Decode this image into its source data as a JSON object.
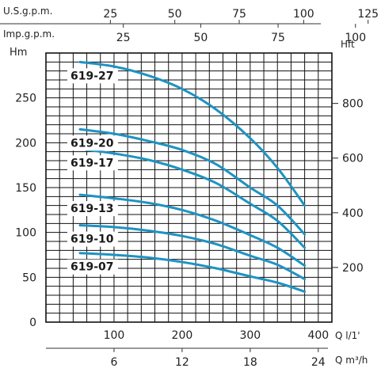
{
  "chart_data": {
    "type": "line",
    "x_axis": {
      "label": "Q l/1'",
      "range": [
        0,
        420
      ],
      "ticks": [
        0,
        20,
        40,
        60,
        80,
        100,
        120,
        140,
        160,
        180,
        200,
        220,
        240,
        260,
        280,
        300,
        320,
        340,
        360,
        380,
        400,
        420
      ],
      "tick_labels": [
        {
          "value": 100,
          "text": "100"
        },
        {
          "value": 200,
          "text": "200"
        },
        {
          "value": 300,
          "text": "300"
        },
        {
          "value": 400,
          "text": "400"
        }
      ]
    },
    "y_axis": {
      "label": "Hm",
      "range": [
        0,
        300
      ],
      "ticks": [
        0,
        10,
        20,
        30,
        40,
        50,
        60,
        70,
        80,
        90,
        100,
        110,
        120,
        130,
        140,
        150,
        160,
        170,
        180,
        190,
        200,
        210,
        220,
        230,
        240,
        250,
        260,
        270,
        280,
        290,
        300
      ],
      "tick_labels": [
        {
          "value": 0,
          "text": "0"
        },
        {
          "value": 50,
          "text": "50"
        },
        {
          "value": 100,
          "text": "100"
        },
        {
          "value": 150,
          "text": "150"
        },
        {
          "value": 200,
          "text": "200"
        },
        {
          "value": 250,
          "text": "250"
        }
      ]
    },
    "right_axis": {
      "label": "Hft",
      "tick_labels": [
        {
          "value": 200,
          "text": "200"
        },
        {
          "value": 400,
          "text": "400"
        },
        {
          "value": 600,
          "text": "600"
        },
        {
          "value": 800,
          "text": "800"
        }
      ]
    },
    "top_axes": [
      {
        "label": "U.S.g.p.m.",
        "tick_labels": [
          {
            "value": 25,
            "text": "25"
          },
          {
            "value": 50,
            "text": "50"
          },
          {
            "value": 75,
            "text": "75"
          },
          {
            "value": 100,
            "text": "100"
          },
          {
            "value": 125,
            "text": "125"
          }
        ]
      },
      {
        "label": "Imp.g.p.m.",
        "tick_labels": [
          {
            "value": 25,
            "text": "25"
          },
          {
            "value": 50,
            "text": "50"
          },
          {
            "value": 75,
            "text": "75"
          },
          {
            "value": 100,
            "text": "100"
          }
        ]
      }
    ],
    "bottom_axis": {
      "label": "Q m³/h",
      "tick_labels": [
        {
          "value": 6,
          "text": "6"
        },
        {
          "value": 12,
          "text": "12"
        },
        {
          "value": 18,
          "text": "18"
        },
        {
          "value": 24,
          "text": "24"
        }
      ]
    },
    "grid": true,
    "series": [
      {
        "name": "619-27",
        "points": [
          [
            50,
            290
          ],
          [
            100,
            285
          ],
          [
            150,
            275
          ],
          [
            200,
            260
          ],
          [
            250,
            237
          ],
          [
            300,
            205
          ],
          [
            340,
            172
          ],
          [
            380,
            130
          ]
        ]
      },
      {
        "name": "619-20",
        "points": [
          [
            50,
            215
          ],
          [
            100,
            210
          ],
          [
            150,
            202
          ],
          [
            200,
            192
          ],
          [
            250,
            176
          ],
          [
            300,
            150
          ],
          [
            340,
            130
          ],
          [
            380,
            98
          ]
        ]
      },
      {
        "name": "619-17",
        "points": [
          [
            50,
            193
          ],
          [
            100,
            188
          ],
          [
            150,
            181
          ],
          [
            200,
            170
          ],
          [
            250,
            155
          ],
          [
            300,
            132
          ],
          [
            340,
            113
          ],
          [
            380,
            83
          ]
        ]
      },
      {
        "name": "619-13",
        "points": [
          [
            50,
            142
          ],
          [
            100,
            138
          ],
          [
            150,
            133
          ],
          [
            200,
            125
          ],
          [
            250,
            113
          ],
          [
            300,
            97
          ],
          [
            340,
            83
          ],
          [
            380,
            63
          ]
        ]
      },
      {
        "name": "619-10",
        "points": [
          [
            50,
            108
          ],
          [
            100,
            106
          ],
          [
            150,
            102
          ],
          [
            200,
            96
          ],
          [
            250,
            87
          ],
          [
            300,
            74
          ],
          [
            340,
            64
          ],
          [
            380,
            48
          ]
        ]
      },
      {
        "name": "619-07",
        "points": [
          [
            50,
            77
          ],
          [
            100,
            75
          ],
          [
            150,
            72
          ],
          [
            200,
            67
          ],
          [
            250,
            60
          ],
          [
            300,
            51
          ],
          [
            340,
            44
          ],
          [
            380,
            34
          ]
        ]
      }
    ],
    "colors": {
      "curve": "#1d93c3",
      "grid": "#111111"
    }
  }
}
